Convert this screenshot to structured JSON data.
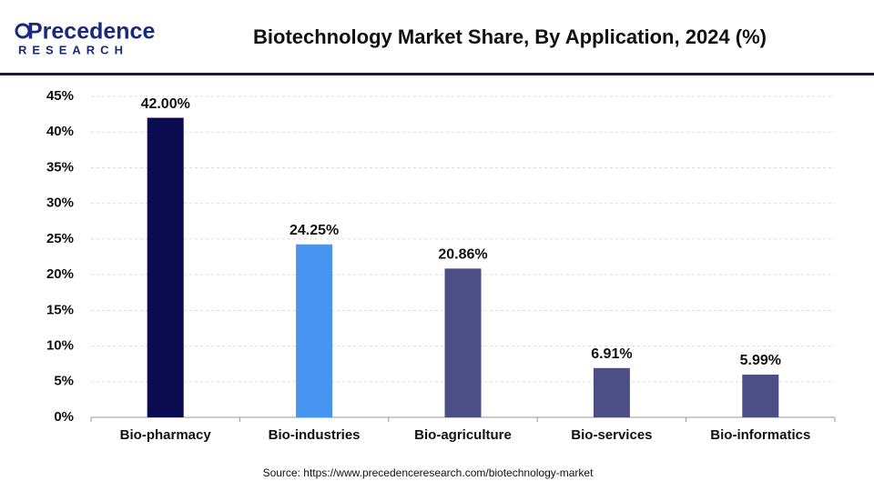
{
  "header": {
    "logo_name": "Precedence",
    "logo_sub": "RESEARCH"
  },
  "chart_data": {
    "type": "bar",
    "title": "Biotechnology Market  Share, By Application, 2024 (%)",
    "categories": [
      "Bio-pharmacy",
      "Bio-industries",
      "Bio-agriculture",
      "Bio-services",
      "Bio-informatics"
    ],
    "values": [
      42.0,
      24.25,
      20.86,
      6.91,
      5.99
    ],
    "value_labels": [
      "42.00%",
      "24.25%",
      "20.86%",
      "6.91%",
      "5.99%"
    ],
    "colors": [
      "#0b0b50",
      "#4795f0",
      "#4b4f86",
      "#4b4f86",
      "#4b4f86"
    ],
    "ylim": [
      0,
      45
    ],
    "yticks": [
      {
        "value": 0,
        "label": "0%"
      },
      {
        "value": 5,
        "label": "5%"
      },
      {
        "value": 10,
        "label": "10%"
      },
      {
        "value": 15,
        "label": "15%"
      },
      {
        "value": 20,
        "label": "20%"
      },
      {
        "value": 25,
        "label": "25%"
      },
      {
        "value": 30,
        "label": "30%"
      },
      {
        "value": 35,
        "label": "35%"
      },
      {
        "value": 40,
        "label": "40%"
      },
      {
        "value": 45,
        "label": "45%"
      }
    ],
    "grid": true,
    "source": "Source: https://www.precedenceresearch.com/biotechnology-market"
  }
}
